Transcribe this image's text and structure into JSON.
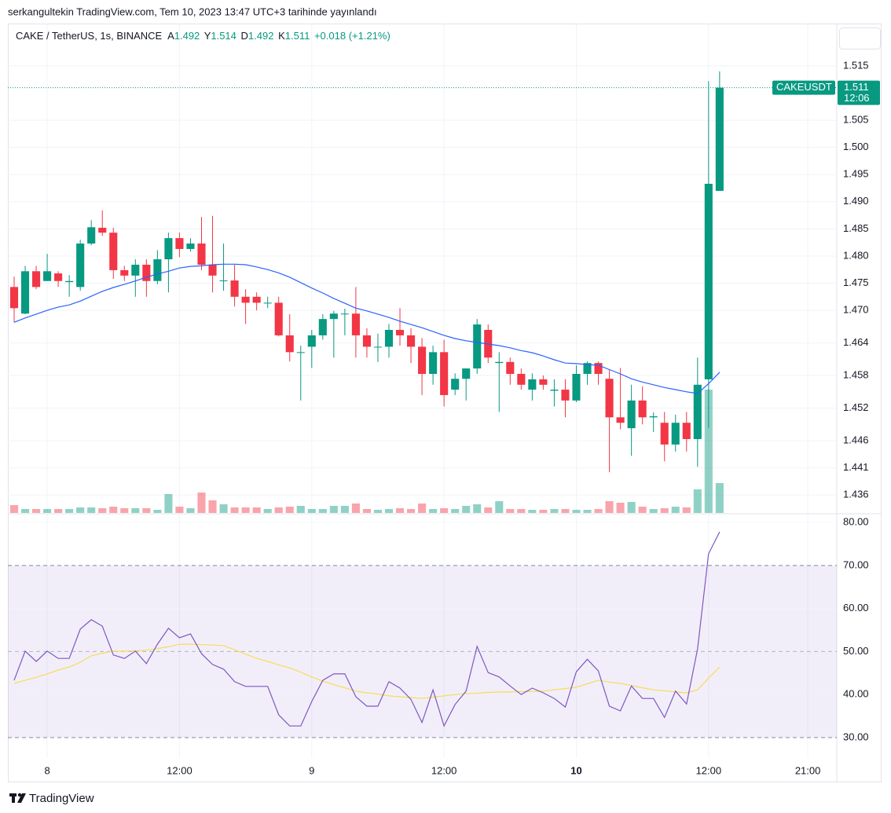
{
  "header": {
    "publish_text": "serkangultekin TradingView.com, Tem 10, 2023 13:47 UTC+3 tarihinde yayınlandı"
  },
  "footer": {
    "brand": "TradingView"
  },
  "chart_data": [
    {
      "type": "candlestick",
      "title": "CAKE / TetherUS, 1s, BINANCE",
      "ohlc_legend": [
        {
          "label": "A",
          "value": 1.492
        },
        {
          "label": "Y",
          "value": 1.514
        },
        {
          "label": "D",
          "value": 1.492
        },
        {
          "label": "K",
          "value": 1.511
        }
      ],
      "change": "+0.018 (+1.21%)",
      "up_color": "#089981",
      "down_color": "#f23645",
      "open": [
        1.4743,
        1.4694,
        1.4772,
        1.4754,
        1.4768,
        1.4752,
        1.4743,
        1.4823,
        1.4852,
        1.4843,
        1.4774,
        1.4764,
        1.4784,
        1.4754,
        1.4794,
        1.4833,
        1.4813,
        1.4823,
        1.4784,
        1.4754,
        1.4755,
        1.4725,
        1.4725,
        1.4713,
        1.4714,
        1.4654,
        1.4622,
        1.4633,
        1.4654,
        1.4684,
        1.4693,
        1.4694,
        1.4654,
        1.4632,
        1.4633,
        1.4664,
        1.4654,
        1.4633,
        1.4583,
        1.4623,
        1.4554,
        1.4574,
        1.4593,
        1.4664,
        1.4603,
        1.4605,
        1.4583,
        1.4554,
        1.4573,
        1.4552,
        1.4554,
        1.4534,
        1.4583,
        1.4603,
        1.4574,
        1.4503,
        1.4483,
        1.4534,
        1.4503,
        1.4493,
        1.4453,
        1.4493,
        1.4463,
        1.4573,
        1.492
      ],
      "high": [
        1.4762,
        1.4782,
        1.4782,
        1.4804,
        1.4772,
        1.4765,
        1.483,
        1.4866,
        1.4884,
        1.4852,
        1.4782,
        1.4794,
        1.4794,
        1.4811,
        1.4843,
        1.4843,
        1.4833,
        1.4872,
        1.4874,
        1.4823,
        1.4784,
        1.4739,
        1.4733,
        1.4725,
        1.4725,
        1.4693,
        1.4635,
        1.4664,
        1.4693,
        1.4699,
        1.4703,
        1.4743,
        1.4667,
        1.4657,
        1.4675,
        1.4704,
        1.4667,
        1.4649,
        1.4635,
        1.4646,
        1.4584,
        1.4593,
        1.4684,
        1.4674,
        1.4623,
        1.4613,
        1.4593,
        1.4584,
        1.458,
        1.4573,
        1.4573,
        1.4599,
        1.4606,
        1.4606,
        1.4591,
        1.4594,
        1.4563,
        1.456,
        1.4512,
        1.4513,
        1.4508,
        1.4513,
        1.4613,
        1.5122,
        1.514
      ],
      "low": [
        1.4678,
        1.4693,
        1.4739,
        1.4754,
        1.4743,
        1.4725,
        1.4736,
        1.482,
        1.4837,
        1.4758,
        1.4754,
        1.4725,
        1.4725,
        1.4748,
        1.4733,
        1.4798,
        1.4808,
        1.4774,
        1.4733,
        1.4736,
        1.4707,
        1.4675,
        1.47,
        1.4704,
        1.4652,
        1.4606,
        1.4534,
        1.4594,
        1.4646,
        1.4613,
        1.4654,
        1.4613,
        1.4613,
        1.4605,
        1.4613,
        1.4635,
        1.4603,
        1.4544,
        1.4563,
        1.4523,
        1.4544,
        1.4534,
        1.4583,
        1.4603,
        1.4513,
        1.4563,
        1.4554,
        1.4534,
        1.4554,
        1.4523,
        1.4503,
        1.4531,
        1.4563,
        1.4563,
        1.4402,
        1.4481,
        1.4432,
        1.449,
        1.4476,
        1.4422,
        1.444,
        1.444,
        1.4412,
        1.4483,
        1.492
      ],
      "close": [
        1.4704,
        1.4772,
        1.4743,
        1.4772,
        1.4754,
        1.4754,
        1.4823,
        1.4853,
        1.4843,
        1.4774,
        1.4764,
        1.4784,
        1.4754,
        1.4794,
        1.4833,
        1.4813,
        1.4823,
        1.4784,
        1.4764,
        1.4755,
        1.4725,
        1.4714,
        1.4714,
        1.4714,
        1.4654,
        1.4623,
        1.4623,
        1.4654,
        1.4684,
        1.4694,
        1.4694,
        1.4654,
        1.4633,
        1.4633,
        1.4664,
        1.4654,
        1.4633,
        1.4583,
        1.4623,
        1.4544,
        1.4574,
        1.4593,
        1.4674,
        1.4613,
        1.4605,
        1.4583,
        1.4563,
        1.4573,
        1.4563,
        1.4554,
        1.4534,
        1.4583,
        1.4603,
        1.4583,
        1.4503,
        1.4493,
        1.4534,
        1.4503,
        1.4505,
        1.4453,
        1.4493,
        1.4463,
        1.4563,
        1.4933,
        1.511
      ],
      "volume": [
        10,
        5,
        5,
        5,
        5,
        5,
        7,
        7,
        6,
        8,
        6,
        6,
        6,
        4,
        24,
        8,
        6,
        26,
        16,
        11,
        7,
        7,
        7,
        5,
        7,
        8,
        9,
        5,
        5,
        9,
        9,
        12,
        5,
        4,
        5,
        6,
        5,
        12,
        5,
        6,
        5,
        9,
        11,
        7,
        15,
        5,
        5,
        4,
        4,
        5,
        5,
        4,
        4,
        5,
        15,
        13,
        14,
        8,
        5,
        6,
        8,
        7,
        30,
        157,
        38
      ],
      "ma": {
        "color": "#2962ff",
        "values": [
          1.4678,
          1.4686,
          1.4693,
          1.47,
          1.4706,
          1.471,
          1.4717,
          1.4726,
          1.4735,
          1.4742,
          1.4748,
          1.4754,
          1.4761,
          1.4767,
          1.4772,
          1.4778,
          1.4781,
          1.4782,
          1.4784,
          1.4785,
          1.4785,
          1.4784,
          1.478,
          1.4775,
          1.4769,
          1.4761,
          1.4751,
          1.4741,
          1.4732,
          1.4722,
          1.4713,
          1.4704,
          1.4699,
          1.4693,
          1.4687,
          1.468,
          1.4674,
          1.4668,
          1.4661,
          1.4654,
          1.4648,
          1.4644,
          1.4641,
          1.4638,
          1.4635,
          1.4631,
          1.4626,
          1.4622,
          1.4616,
          1.4609,
          1.4603,
          1.4602,
          1.46,
          1.4599,
          1.4591,
          1.4583,
          1.4574,
          1.4568,
          1.4563,
          1.4558,
          1.4554,
          1.455,
          1.4547,
          1.4565,
          1.4586
        ]
      },
      "last_price": {
        "name": "CAKEUSDT",
        "value": 1.511,
        "countdown": "12:06"
      },
      "xlim": [
        -0.57,
        74.63
      ],
      "ylim": [
        1.4327,
        1.5228
      ],
      "yticks": [
        1.436,
        1.441,
        1.446,
        1.452,
        1.458,
        1.464,
        {
          "value": 1.47,
          "label": "1.470"
        },
        1.475,
        {
          "value": 1.48,
          "label": "1.480"
        },
        1.485,
        {
          "value": 1.49,
          "label": "1.490"
        },
        1.495,
        {
          "value": 1.5,
          "label": "1.500"
        },
        1.505,
        1.515
      ],
      "grid": true
    },
    {
      "type": "line",
      "series": [
        {
          "color": "#7e57c2",
          "values": [
            43.3,
            50.1,
            47.7,
            50.1,
            48.4,
            48.4,
            55.2,
            57.4,
            55.9,
            49.2,
            48.4,
            50.1,
            47.2,
            51.7,
            55.4,
            53.2,
            54.1,
            49.5,
            47.0,
            45.9,
            43.0,
            41.9,
            41.9,
            41.9,
            35.3,
            32.7,
            32.7,
            38.4,
            43.3,
            44.8,
            44.8,
            39.5,
            37.3,
            37.3,
            43.0,
            41.5,
            38.9,
            33.5,
            41.1,
            32.7,
            37.7,
            40.8,
            51.2,
            45.1,
            44.1,
            42.0,
            40.0,
            41.5,
            40.4,
            39.1,
            37.1,
            45.3,
            48.2,
            45.5,
            37.3,
            36.2,
            42.0,
            39.1,
            39.1,
            34.7,
            40.8,
            37.8,
            50.6,
            72.7,
            77.8
          ]
        },
        {
          "color": "#f7dc5a",
          "values": [
            42.6,
            43.3,
            44.0,
            44.8,
            45.7,
            46.4,
            47.5,
            49.0,
            49.6,
            50.1,
            50.1,
            50.2,
            50.3,
            50.7,
            51.1,
            51.7,
            51.7,
            51.6,
            51.5,
            51.4,
            50.4,
            49.4,
            48.4,
            47.7,
            46.9,
            46.2,
            45.2,
            44.1,
            43.1,
            42.3,
            41.6,
            40.8,
            40.4,
            40.1,
            39.7,
            39.5,
            39.3,
            39.1,
            39.4,
            39.7,
            40.0,
            40.2,
            40.3,
            40.5,
            40.6,
            40.6,
            40.7,
            40.7,
            40.8,
            41.1,
            41.4,
            41.7,
            42.5,
            43.3,
            42.9,
            42.6,
            42.1,
            41.6,
            41.1,
            40.9,
            40.6,
            40.4,
            41.1,
            43.8,
            46.4
          ]
        }
      ],
      "bands": {
        "upper": 70,
        "middle": 50,
        "lower": 30
      },
      "xlim": [
        -0.57,
        74.63
      ],
      "ylim": [
        25.26,
        81.83
      ],
      "yticks": [
        {
          "value": 30,
          "label": "30.00"
        },
        {
          "value": 40,
          "label": "40.00"
        },
        {
          "value": 50,
          "label": "50.00"
        },
        {
          "value": 60,
          "label": "60.00"
        },
        {
          "value": 70,
          "label": "70.00"
        },
        {
          "value": 80,
          "label": "80.00"
        }
      ],
      "xticks": [
        {
          "value": 3,
          "label": "8"
        },
        {
          "value": 15,
          "label": "12:00"
        },
        {
          "value": 27,
          "label": "9"
        },
        {
          "value": 39,
          "label": "12:00"
        },
        {
          "value": 51,
          "label": "10",
          "bold": true
        },
        {
          "value": 63,
          "label": "12:00"
        },
        {
          "value": 72,
          "label": "21:00"
        }
      ],
      "grid": true
    }
  ]
}
